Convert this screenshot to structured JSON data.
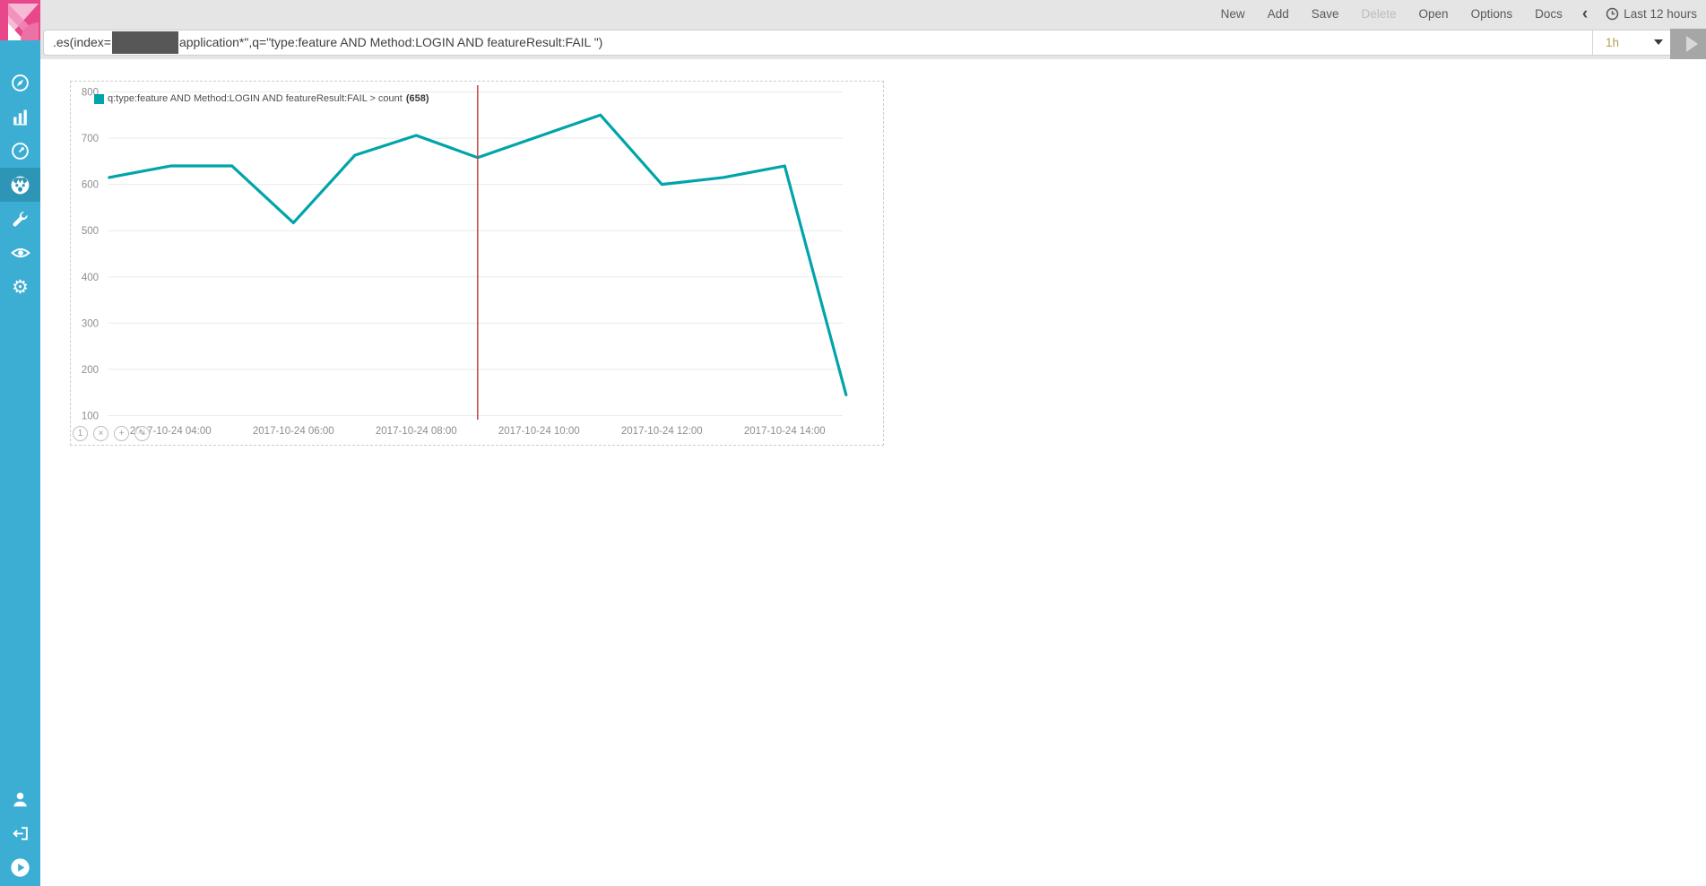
{
  "sidebar": {
    "accent_color": "#3CAED3",
    "active_color": "#2D96B6",
    "logo_color": "#E8478B",
    "items": [
      {
        "name": "discover",
        "icon": "compass-icon"
      },
      {
        "name": "visualize",
        "icon": "bar-chart-icon"
      },
      {
        "name": "dashboard",
        "icon": "gauge-icon"
      },
      {
        "name": "timelion",
        "icon": "timelion-face-icon",
        "active": true
      },
      {
        "name": "dev-tools",
        "icon": "wrench-icon"
      },
      {
        "name": "monitoring",
        "icon": "eye-icon"
      },
      {
        "name": "management",
        "icon": "gear-icon"
      }
    ],
    "bottom_items": [
      {
        "name": "account",
        "icon": "user-icon"
      },
      {
        "name": "logout",
        "icon": "logout-icon"
      },
      {
        "name": "collapse",
        "icon": "play-circle-icon"
      }
    ]
  },
  "topnav": {
    "items": [
      {
        "label": "New"
      },
      {
        "label": "Add"
      },
      {
        "label": "Save"
      },
      {
        "label": "Delete",
        "disabled": true
      },
      {
        "label": "Open"
      },
      {
        "label": "Options"
      },
      {
        "label": "Docs"
      }
    ],
    "collapse_chevron": "‹",
    "clipped_chevron": "›",
    "time_range": "Last 12 hours"
  },
  "querybar": {
    "expression_prefix": ".es(index=",
    "redacted_segment": true,
    "expression_suffix": "application*\",q=\"type:feature AND Method:LOGIN AND featureResult:FAIL \")",
    "interval": "1h"
  },
  "chart_data": {
    "type": "line",
    "legend": {
      "label": "q:type:feature AND Method:LOGIN AND featureResult:FAIL > count",
      "value": "(658)",
      "color": "#00A4A9",
      "position": "top-left"
    },
    "date": "2017-10-24",
    "x": [
      "03:00",
      "04:00",
      "05:00",
      "06:00",
      "07:00",
      "08:00",
      "09:00",
      "10:00",
      "11:00",
      "12:00",
      "13:00",
      "14:00",
      "15:00"
    ],
    "series": [
      {
        "name": "q:type:feature AND Method:LOGIN AND featureResult:FAIL > count",
        "color": "#00A4A9",
        "values": [
          615,
          640,
          640,
          517,
          663,
          706,
          658,
          704,
          750,
          600,
          615,
          640,
          145
        ]
      }
    ],
    "x_tick_labels": [
      "2017-10-24 04:00",
      "2017-10-24 06:00",
      "2017-10-24 08:00",
      "2017-10-24 10:00",
      "2017-10-24 12:00",
      "2017-10-24 14:00"
    ],
    "y_ticks": [
      100,
      200,
      300,
      400,
      500,
      600,
      700,
      800
    ],
    "ylim": [
      100,
      800
    ],
    "grid": true,
    "crosshair": {
      "x": "09:00",
      "value": 658,
      "color": "#C34F4F"
    },
    "panel_buttons": [
      {
        "name": "series-toggle",
        "glyph": "1"
      },
      {
        "name": "remove",
        "glyph": "×"
      },
      {
        "name": "pan",
        "glyph": "+"
      },
      {
        "name": "edit",
        "glyph": "✎"
      }
    ]
  }
}
